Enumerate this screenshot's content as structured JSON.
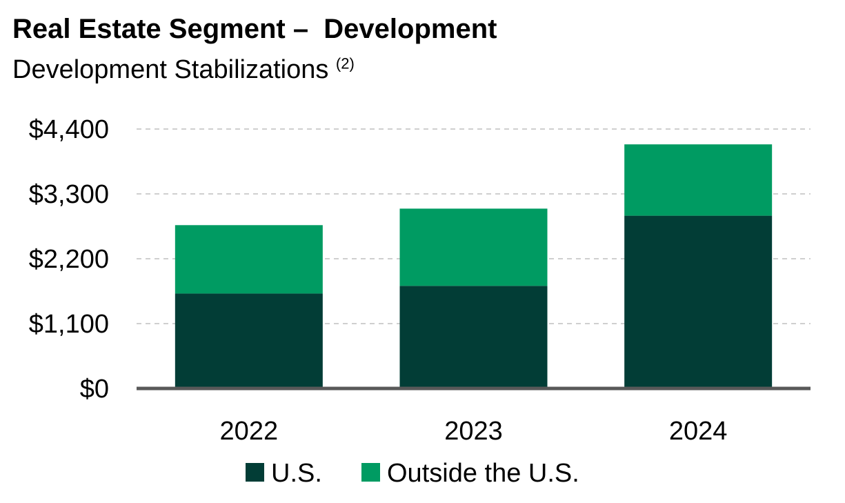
{
  "title": "Real Estate Segment –  Development",
  "subtitle": "Development Stabilizations",
  "subtitle_note": "(2)",
  "colors": {
    "us": "#023d36",
    "outside_us": "#009b62",
    "axis": "#595959",
    "grid": "#bfbfbf"
  },
  "chart_data": {
    "type": "bar",
    "stacked": true,
    "categories": [
      "2022",
      "2023",
      "2024"
    ],
    "series": [
      {
        "name": "U.S.",
        "values": [
          1610,
          1740,
          2930
        ]
      },
      {
        "name": "Outside the U.S.",
        "values": [
          1160,
          1310,
          1210
        ]
      }
    ],
    "ylim": [
      0,
      4400
    ],
    "yticks": [
      0,
      1100,
      2200,
      3300,
      4400
    ],
    "ytick_labels": [
      "$0",
      "$1,100",
      "$2,200",
      "$3,300",
      "$4,400"
    ],
    "grid": true,
    "legend": "bottom-center"
  }
}
